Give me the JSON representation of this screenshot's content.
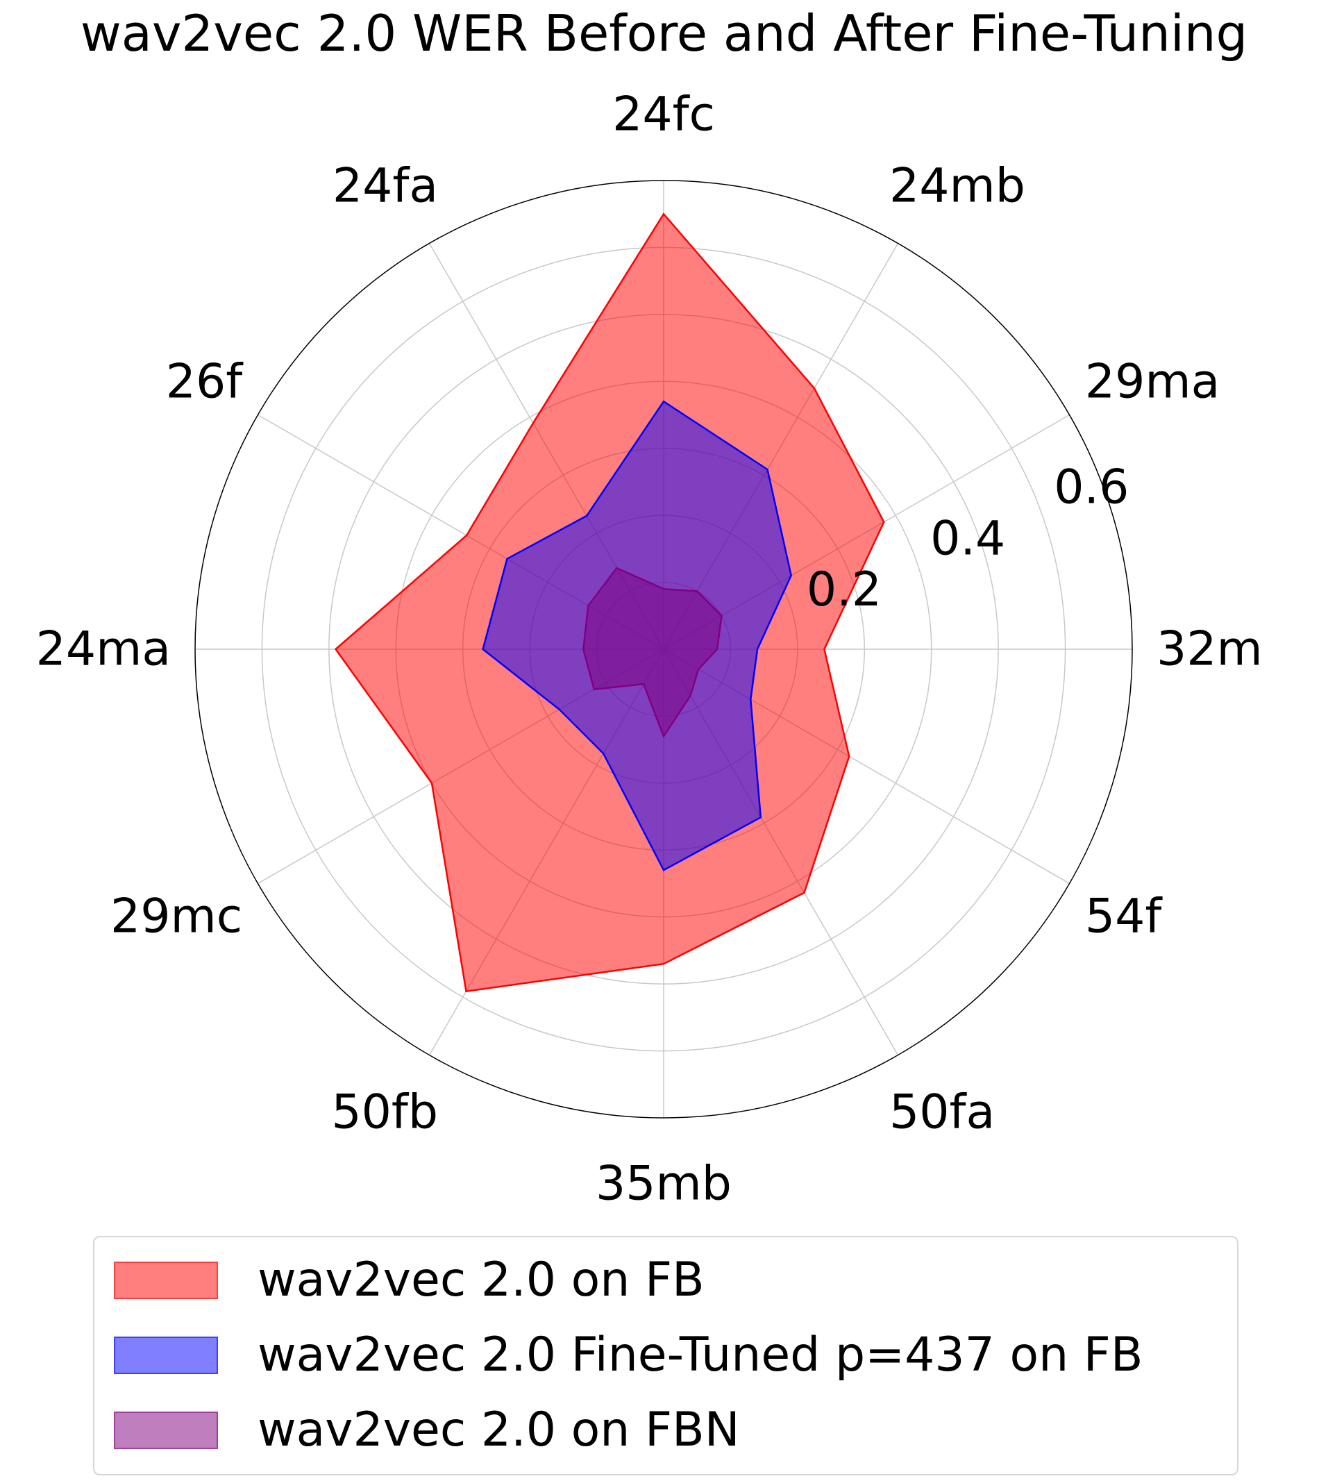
{
  "chart_data": {
    "type": "radar",
    "title": "wav2vec 2.0 WER Before and After Fine-Tuning",
    "categories": [
      "32m",
      "29ma",
      "24mb",
      "24fc",
      "24fa",
      "26f",
      "24ma",
      "29mc",
      "50fb",
      "35mb",
      "50fa",
      "54f"
    ],
    "radial_ticks": [
      "0.2",
      "0.4",
      "0.6"
    ],
    "rlim": [
      0,
      0.7
    ],
    "grid": true,
    "series": [
      {
        "name": "wav2vec 2.0 on FB",
        "values": [
          0.24,
          0.38,
          0.45,
          0.65,
          0.39,
          0.34,
          0.49,
          0.4,
          0.59,
          0.47,
          0.42,
          0.32
        ],
        "fill": "#ff0000",
        "fill_opacity": 0.5,
        "line": "#ff0000"
      },
      {
        "name": "wav2vec 2.0 Fine-Tuned p=437 on FB",
        "values": [
          0.14,
          0.22,
          0.31,
          0.37,
          0.23,
          0.27,
          0.27,
          0.18,
          0.18,
          0.33,
          0.29,
          0.15
        ],
        "fill": "#0000ff",
        "fill_opacity": 0.5,
        "line": "#0000ff"
      },
      {
        "name": "wav2vec 2.0 on FBN",
        "values": [
          0.08,
          0.1,
          0.1,
          0.09,
          0.14,
          0.13,
          0.12,
          0.12,
          0.06,
          0.13,
          0.08,
          0.06
        ],
        "fill": "#800080",
        "fill_opacity": 0.5,
        "line": "#800080"
      }
    ],
    "legend_position": "bottom"
  }
}
